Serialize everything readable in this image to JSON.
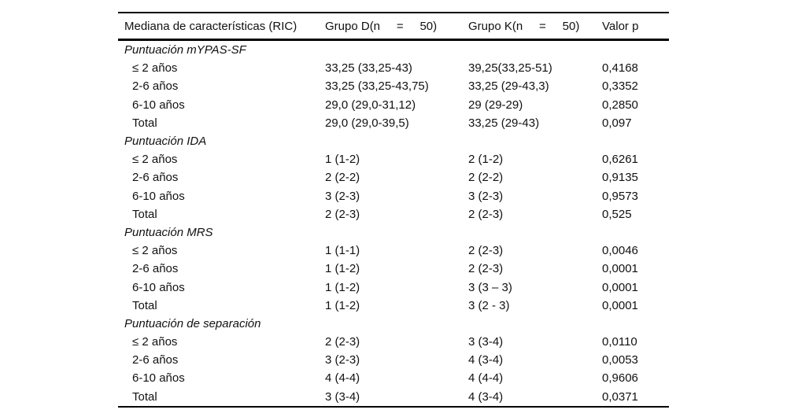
{
  "table": {
    "columns": {
      "characteristic": "Mediana de características (RIC)",
      "group_d": "Grupo D(n     =     50)",
      "group_k": "Grupo K(n     =     50)",
      "p_value": "Valor p"
    },
    "sections": [
      {
        "title": "Puntuación mYPAS-SF",
        "rows": [
          {
            "label": "≤ 2 años",
            "group_d": "33,25 (33,25-43)",
            "group_k": "39,25(33,25-51)",
            "p": "0,4168"
          },
          {
            "label": "2-6 años",
            "group_d": "33,25 (33,25-43,75)",
            "group_k": "33,25 (29-43,3)",
            "p": "0,3352"
          },
          {
            "label": "6-10 años",
            "group_d": "29,0 (29,0-31,12)",
            "group_k": "29 (29-29)",
            "p": "0,2850"
          },
          {
            "label": "Total",
            "group_d": "29,0 (29,0-39,5)",
            "group_k": "33,25 (29-43)",
            "p": "0,097"
          }
        ]
      },
      {
        "title": "Puntuación IDA",
        "rows": [
          {
            "label": "≤ 2 años",
            "group_d": "1 (1-2)",
            "group_k": "2 (1-2)",
            "p": "0,6261"
          },
          {
            "label": "2-6 años",
            "group_d": "2 (2-2)",
            "group_k": "2 (2-2)",
            "p": "0,9135"
          },
          {
            "label": "6-10 años",
            "group_d": "3 (2-3)",
            "group_k": "3 (2-3)",
            "p": "0,9573"
          },
          {
            "label": "Total",
            "group_d": "2 (2-3)",
            "group_k": "2 (2-3)",
            "p": "0,525"
          }
        ]
      },
      {
        "title": "Puntuación MRS",
        "rows": [
          {
            "label": "≤ 2 años",
            "group_d": "1 (1-1)",
            "group_k": "2 (2-3)",
            "p": "0,0046"
          },
          {
            "label": "2-6 años",
            "group_d": "1 (1-2)",
            "group_k": "2 (2-3)",
            "p": "0,0001"
          },
          {
            "label": "6-10 años",
            "group_d": "1 (1-2)",
            "group_k": "3 (3 – 3)",
            "p": "0,0001"
          },
          {
            "label": "Total",
            "group_d": "1 (1-2)",
            "group_k": "3 (2 - 3)",
            "p": "0,0001"
          }
        ]
      },
      {
        "title": "Puntuación de separación",
        "rows": [
          {
            "label": "≤ 2 años",
            "group_d": "2 (2-3)",
            "group_k": "3 (3-4)",
            "p": "0,0110"
          },
          {
            "label": "2-6 años",
            "group_d": "3 (2-3)",
            "group_k": "4 (3-4)",
            "p": "0,0053"
          },
          {
            "label": "6-10 años",
            "group_d": "4 (4-4)",
            "group_k": "4 (4-4)",
            "p": "0,9606"
          },
          {
            "label": "Total",
            "group_d": "3 (3-4)",
            "group_k": "4 (3-4)",
            "p": "0,0371"
          }
        ]
      }
    ]
  }
}
